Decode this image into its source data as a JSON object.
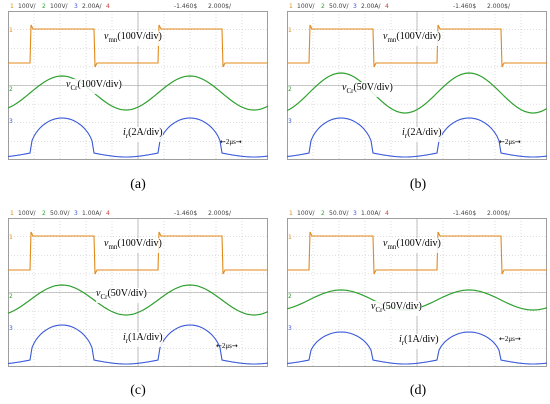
{
  "panels": [
    {
      "id": "a",
      "caption": "(a)",
      "header": {
        "ch1": "1",
        "ch1_scale": "100V/",
        "ch2": "2",
        "ch2_scale": "100V/",
        "ch3": "3",
        "ch3_scale": "2.00A/",
        "ch4": "4",
        "delay": "-1.460$",
        "timebase": "2.000$/"
      },
      "labels": {
        "v_sym": "v",
        "v_sub": "mn",
        "v_scale": "(100V/div)",
        "vc_sym": "v",
        "vc_sub": "Cr",
        "vc_scale": "(100V/div)",
        "i_sym": "i",
        "i_sub": "r",
        "i_scale": "(2A/div)"
      },
      "time_marker": "2μs",
      "wave": {
        "vc_amp": 0.85,
        "i_amp": 1.0
      }
    },
    {
      "id": "b",
      "caption": "(b)",
      "header": {
        "ch1": "1",
        "ch1_scale": "100V/",
        "ch2": "2",
        "ch2_scale": "50.0V/",
        "ch3": "3",
        "ch3_scale": "2.00A/",
        "ch4": "4",
        "delay": "-1.460$",
        "timebase": "2.000$/"
      },
      "labels": {
        "v_sym": "v",
        "v_sub": "mn",
        "v_scale": "(100V/div)",
        "vc_sym": "v",
        "vc_sub": "Cr",
        "vc_scale": "(50V/div)",
        "i_sym": "i",
        "i_sub": "r",
        "i_scale": "(2A/div)"
      },
      "time_marker": "2μs",
      "wave": {
        "vc_amp": 1.0,
        "i_amp": 1.0
      }
    },
    {
      "id": "c",
      "caption": "(c)",
      "header": {
        "ch1": "1",
        "ch1_scale": "100V/",
        "ch2": "2",
        "ch2_scale": "50.0V/",
        "ch3": "3",
        "ch3_scale": "1.00A/",
        "ch4": "4",
        "delay": "-1.460$",
        "timebase": "2.000$/"
      },
      "labels": {
        "v_sym": "v",
        "v_sub": "mn",
        "v_scale": "(100V/div)",
        "vc_sym": "v",
        "vc_sub": "Cr",
        "vc_scale": "(50V/div)",
        "i_sym": "i",
        "i_sub": "r",
        "i_scale": "(1A/div)"
      },
      "time_marker": "2μs",
      "wave": {
        "vc_amp": 0.75,
        "i_amp": 1.0
      }
    },
    {
      "id": "d",
      "caption": "(d)",
      "header": {
        "ch1": "1",
        "ch1_scale": "100V/",
        "ch2": "2",
        "ch2_scale": "50.0V/",
        "ch3": "3",
        "ch3_scale": "1.00A/",
        "ch4": "4",
        "delay": "-1.460$",
        "timebase": "2.000$/"
      },
      "labels": {
        "v_sym": "v",
        "v_sub": "mn",
        "v_scale": "(100V/div)",
        "vc_sym": "v",
        "vc_sub": "Cr",
        "vc_scale": "(50V/div)",
        "i_sym": "i",
        "i_sub": "r",
        "i_scale": "(1A/div)"
      },
      "time_marker": "2μs",
      "wave": {
        "vc_amp": 0.5,
        "i_amp": 0.8
      }
    }
  ],
  "colors": {
    "ch1": "#e08a1a",
    "ch2": "#2fa02f",
    "ch3": "#3a5ad8",
    "grid": "#bdbdbd"
  }
}
